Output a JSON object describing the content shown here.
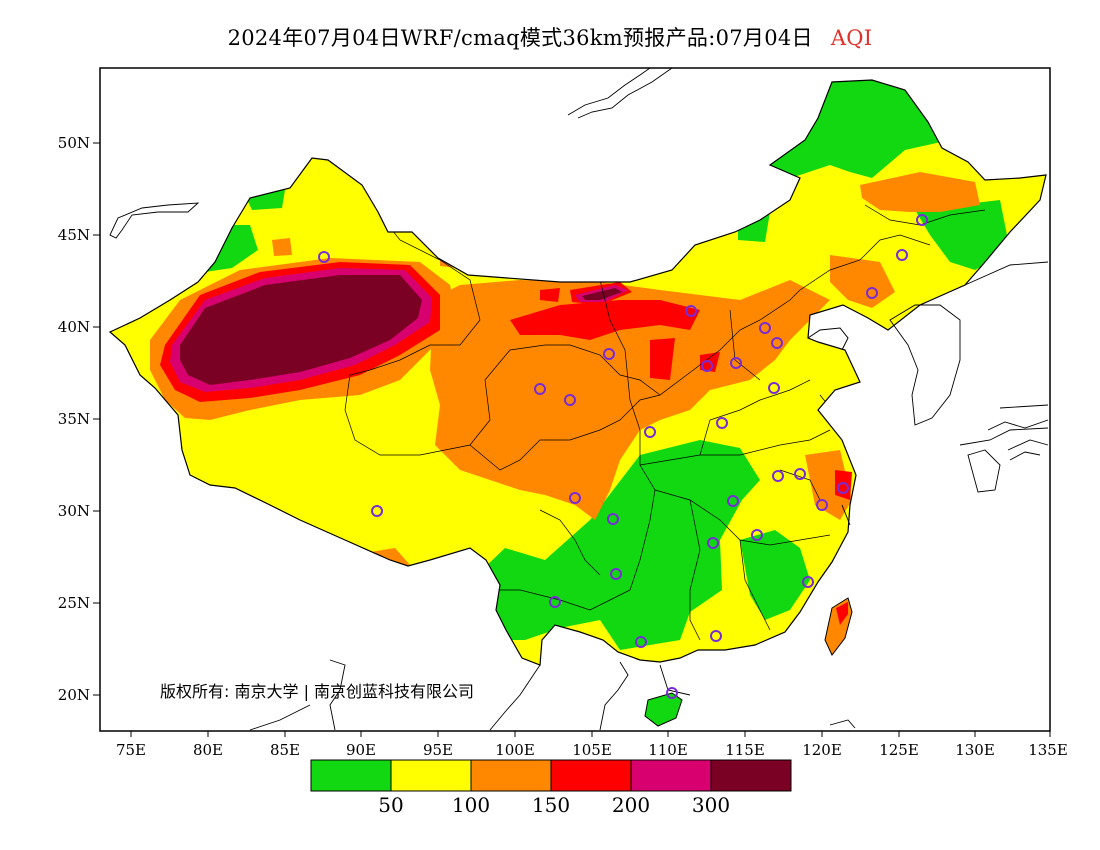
{
  "title": {
    "prefix": "2024年07月04日WRF/cmaq模式36km预报产品:07月04日",
    "variable": "AQI"
  },
  "axes": {
    "lon_ticks": [
      "75E",
      "80E",
      "85E",
      "90E",
      "95E",
      "100E",
      "105E",
      "110E",
      "115E",
      "120E",
      "125E",
      "130E",
      "135E"
    ],
    "lat_ticks": [
      "20N",
      "25N",
      "30N",
      "35N",
      "40N",
      "45N",
      "50N"
    ]
  },
  "copyright": "版权所有: 南京大学 | 南京创蓝科技有限公司",
  "legend": {
    "colors": [
      "#11d811",
      "#ffff00",
      "#ff8800",
      "#ff0000",
      "#d8006e",
      "#7a0024"
    ],
    "labels": [
      "50",
      "100",
      "150",
      "200",
      "300"
    ]
  }
}
